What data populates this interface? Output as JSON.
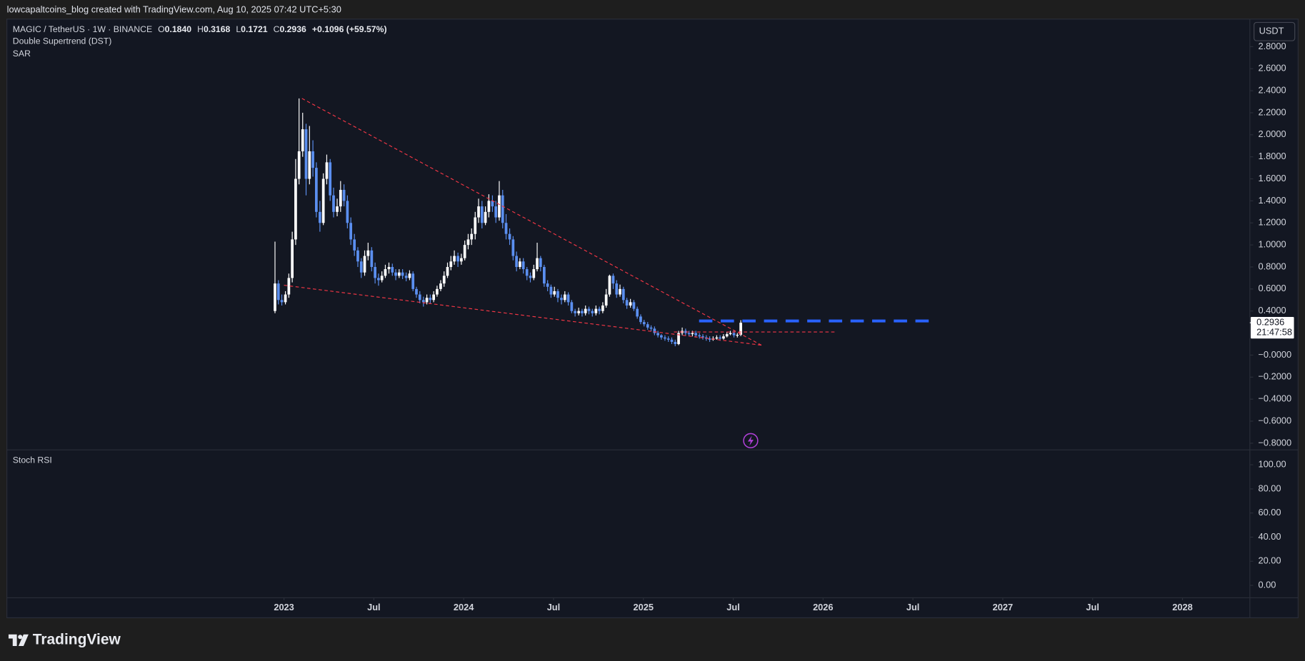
{
  "header": {
    "text": "lowcapaltcoins_blog created with TradingView.com, Aug 10, 2025 07:42 UTC+5:30"
  },
  "footer": {
    "logo": "TradingView"
  },
  "chart_data": [
    {
      "type": "candlestick",
      "title": "MAGIC / TetherUS · 1W · BINANCE",
      "legend": [
        {
          "label": "O",
          "value": "0.1840"
        },
        {
          "label": "H",
          "value": "0.3168"
        },
        {
          "label": "L",
          "value": "0.1721"
        },
        {
          "label": "C",
          "value": "0.2936"
        }
      ],
      "change": "+0.1096 (+59.57%)",
      "indicators": [
        "Double Supertrend (DST)",
        "SAR"
      ],
      "currency": "USDT",
      "last_price": "0.2936",
      "countdown": "21:47:58",
      "up_color": "#ffffff",
      "down_color": "#5b8ff0",
      "xlim": [
        2021.458,
        2028.375
      ],
      "xticks": [
        {
          "value": 2023,
          "label": "2023"
        },
        {
          "value": 2023.5,
          "label": "Jul"
        },
        {
          "value": 2024,
          "label": "2024"
        },
        {
          "value": 2024.5,
          "label": "Jul"
        },
        {
          "value": 2025,
          "label": "2025"
        },
        {
          "value": 2025.5,
          "label": "Jul"
        },
        {
          "value": 2026,
          "label": "2026"
        },
        {
          "value": 2026.5,
          "label": "Jul"
        },
        {
          "value": 2027,
          "label": "2027"
        },
        {
          "value": 2027.5,
          "label": "Jul"
        },
        {
          "value": 2028,
          "label": "2028"
        }
      ],
      "ylim": [
        -0.86,
        3.05
      ],
      "yticks": [
        {
          "value": 2.8,
          "label": "2.8000"
        },
        {
          "value": 2.6,
          "label": "2.6000"
        },
        {
          "value": 2.4,
          "label": "2.4000"
        },
        {
          "value": 2.2,
          "label": "2.2000"
        },
        {
          "value": 2.0,
          "label": "2.0000"
        },
        {
          "value": 1.8,
          "label": "1.8000"
        },
        {
          "value": 1.6,
          "label": "1.6000"
        },
        {
          "value": 1.4,
          "label": "1.4000"
        },
        {
          "value": 1.2,
          "label": "1.2000"
        },
        {
          "value": 1.0,
          "label": "1.0000"
        },
        {
          "value": 0.8,
          "label": "0.8000"
        },
        {
          "value": 0.6,
          "label": "0.6000"
        },
        {
          "value": 0.4,
          "label": "0.4000"
        },
        {
          "value": 0,
          "label": "−0.0000"
        },
        {
          "value": -0.2,
          "label": "−0.2000"
        },
        {
          "value": -0.4,
          "label": "−0.4000"
        },
        {
          "value": -0.6,
          "label": "−0.6000"
        },
        {
          "value": -0.8,
          "label": "−0.8000"
        }
      ],
      "x": [
        2022.95,
        2022.969,
        2022.988,
        2023.008,
        2023.027,
        2023.046,
        2023.065,
        2023.084,
        2023.104,
        2023.123,
        2023.142,
        2023.161,
        2023.18,
        2023.2,
        2023.219,
        2023.238,
        2023.257,
        2023.276,
        2023.296,
        2023.315,
        2023.334,
        2023.353,
        2023.372,
        2023.392,
        2023.411,
        2023.43,
        2023.449,
        2023.468,
        2023.488,
        2023.507,
        2023.526,
        2023.545,
        2023.564,
        2023.584,
        2023.603,
        2023.622,
        2023.641,
        2023.66,
        2023.68,
        2023.699,
        2023.718,
        2023.737,
        2023.756,
        2023.776,
        2023.795,
        2023.814,
        2023.833,
        2023.852,
        2023.872,
        2023.891,
        2023.91,
        2023.929,
        2023.948,
        2023.968,
        2023.987,
        2024.006,
        2024.025,
        2024.044,
        2024.064,
        2024.083,
        2024.102,
        2024.121,
        2024.14,
        2024.16,
        2024.179,
        2024.198,
        2024.217,
        2024.236,
        2024.256,
        2024.275,
        2024.294,
        2024.313,
        2024.332,
        2024.352,
        2024.371,
        2024.39,
        2024.409,
        2024.428,
        2024.448,
        2024.467,
        2024.486,
        2024.505,
        2024.524,
        2024.544,
        2024.563,
        2024.582,
        2024.601,
        2024.62,
        2024.64,
        2024.659,
        2024.678,
        2024.697,
        2024.716,
        2024.736,
        2024.755,
        2024.774,
        2024.793,
        2024.812,
        2024.832,
        2024.851,
        2024.87,
        2024.889,
        2024.908,
        2024.928,
        2024.947,
        2024.966,
        2024.985,
        2025.004,
        2025.024,
        2025.043,
        2025.062,
        2025.081,
        2025.1,
        2025.12,
        2025.139,
        2025.158,
        2025.177,
        2025.196,
        2025.216,
        2025.235,
        2025.254,
        2025.273,
        2025.292,
        2025.312,
        2025.331,
        2025.35,
        2025.369,
        2025.388,
        2025.408,
        2025.427,
        2025.446,
        2025.465,
        2025.484,
        2025.504,
        2025.523,
        2025.542
      ],
      "open": [
        0.4,
        0.65,
        0.5,
        0.48,
        0.55,
        0.7,
        1.05,
        1.6,
        1.85,
        2.05,
        1.6,
        1.85,
        1.7,
        1.3,
        1.2,
        1.6,
        1.75,
        1.45,
        1.3,
        1.35,
        1.5,
        1.4,
        1.2,
        1.05,
        0.95,
        0.85,
        0.75,
        0.9,
        0.95,
        0.8,
        0.7,
        0.68,
        0.72,
        0.78,
        0.8,
        0.75,
        0.72,
        0.75,
        0.72,
        0.7,
        0.74,
        0.6,
        0.55,
        0.5,
        0.48,
        0.52,
        0.5,
        0.55,
        0.6,
        0.65,
        0.72,
        0.8,
        0.85,
        0.9,
        0.85,
        0.88,
        1.0,
        1.05,
        1.1,
        1.25,
        1.35,
        1.2,
        1.3,
        1.4,
        1.35,
        1.25,
        1.45,
        1.2,
        1.1,
        1.05,
        0.9,
        0.8,
        0.85,
        0.78,
        0.72,
        0.7,
        0.78,
        0.88,
        0.8,
        0.65,
        0.62,
        0.55,
        0.58,
        0.52,
        0.5,
        0.55,
        0.48,
        0.4,
        0.38,
        0.4,
        0.38,
        0.42,
        0.4,
        0.38,
        0.42,
        0.4,
        0.45,
        0.55,
        0.72,
        0.65,
        0.55,
        0.6,
        0.5,
        0.45,
        0.48,
        0.42,
        0.35,
        0.3,
        0.28,
        0.25,
        0.24,
        0.2,
        0.18,
        0.16,
        0.15,
        0.14,
        0.12,
        0.1,
        0.2,
        0.22,
        0.2,
        0.19,
        0.2,
        0.18,
        0.17,
        0.16,
        0.15,
        0.14,
        0.15,
        0.16,
        0.15,
        0.17,
        0.19,
        0.2,
        0.18,
        0.184
      ],
      "high": [
        1.03,
        0.68,
        0.55,
        0.58,
        0.74,
        1.12,
        1.78,
        2.33,
        2.2,
        2.1,
        2.08,
        1.95,
        1.75,
        1.4,
        1.65,
        1.82,
        1.78,
        1.52,
        1.42,
        1.58,
        1.55,
        1.45,
        1.25,
        1.1,
        0.98,
        0.88,
        0.95,
        1.02,
        0.98,
        0.84,
        0.74,
        0.76,
        0.82,
        0.84,
        0.83,
        0.78,
        0.78,
        0.78,
        0.75,
        0.77,
        0.76,
        0.62,
        0.58,
        0.53,
        0.55,
        0.55,
        0.58,
        0.63,
        0.68,
        0.76,
        0.84,
        0.9,
        0.95,
        0.93,
        0.92,
        1.04,
        1.1,
        1.15,
        1.3,
        1.42,
        1.4,
        1.35,
        1.46,
        1.45,
        1.4,
        1.58,
        1.5,
        1.28,
        1.15,
        1.08,
        0.94,
        0.88,
        0.88,
        0.8,
        0.75,
        0.82,
        1.02,
        0.9,
        0.82,
        0.68,
        0.64,
        0.62,
        0.6,
        0.55,
        0.58,
        0.57,
        0.5,
        0.42,
        0.43,
        0.42,
        0.45,
        0.44,
        0.42,
        0.45,
        0.44,
        0.48,
        0.6,
        0.73,
        0.74,
        0.68,
        0.64,
        0.62,
        0.52,
        0.51,
        0.5,
        0.44,
        0.37,
        0.32,
        0.3,
        0.27,
        0.26,
        0.22,
        0.19,
        0.18,
        0.17,
        0.16,
        0.14,
        0.22,
        0.25,
        0.24,
        0.22,
        0.22,
        0.22,
        0.2,
        0.19,
        0.18,
        0.17,
        0.17,
        0.18,
        0.18,
        0.19,
        0.21,
        0.22,
        0.22,
        0.2,
        0.3168
      ],
      "low": [
        0.38,
        0.46,
        0.45,
        0.46,
        0.52,
        0.66,
        1.0,
        1.55,
        1.8,
        1.45,
        1.55,
        1.62,
        1.25,
        1.12,
        1.18,
        1.55,
        1.4,
        1.25,
        1.26,
        1.3,
        1.35,
        1.15,
        1.0,
        0.9,
        0.8,
        0.7,
        0.72,
        0.86,
        0.76,
        0.65,
        0.63,
        0.66,
        0.7,
        0.74,
        0.72,
        0.68,
        0.7,
        0.69,
        0.67,
        0.68,
        0.58,
        0.52,
        0.47,
        0.44,
        0.46,
        0.47,
        0.48,
        0.53,
        0.58,
        0.62,
        0.7,
        0.77,
        0.82,
        0.8,
        0.82,
        0.86,
        0.96,
        1.0,
        1.05,
        1.2,
        1.15,
        1.18,
        1.25,
        1.3,
        1.2,
        1.22,
        1.15,
        1.05,
        1.0,
        0.86,
        0.76,
        0.78,
        0.74,
        0.68,
        0.66,
        0.68,
        0.76,
        0.76,
        0.62,
        0.58,
        0.52,
        0.53,
        0.48,
        0.46,
        0.48,
        0.45,
        0.38,
        0.35,
        0.36,
        0.35,
        0.36,
        0.37,
        0.35,
        0.36,
        0.37,
        0.38,
        0.43,
        0.53,
        0.6,
        0.52,
        0.53,
        0.47,
        0.42,
        0.43,
        0.4,
        0.33,
        0.28,
        0.26,
        0.23,
        0.22,
        0.18,
        0.16,
        0.14,
        0.13,
        0.12,
        0.1,
        0.08,
        0.09,
        0.18,
        0.18,
        0.17,
        0.17,
        0.16,
        0.15,
        0.14,
        0.13,
        0.12,
        0.13,
        0.14,
        0.13,
        0.14,
        0.16,
        0.18,
        0.16,
        0.16,
        0.1721
      ],
      "close": [
        0.65,
        0.5,
        0.48,
        0.55,
        0.7,
        1.05,
        1.6,
        1.85,
        2.05,
        1.6,
        1.85,
        1.7,
        1.3,
        1.2,
        1.6,
        1.75,
        1.45,
        1.3,
        1.35,
        1.5,
        1.4,
        1.2,
        1.05,
        0.95,
        0.85,
        0.75,
        0.9,
        0.95,
        0.8,
        0.7,
        0.68,
        0.72,
        0.78,
        0.8,
        0.75,
        0.72,
        0.75,
        0.72,
        0.7,
        0.74,
        0.6,
        0.55,
        0.5,
        0.48,
        0.52,
        0.5,
        0.55,
        0.6,
        0.65,
        0.72,
        0.8,
        0.85,
        0.9,
        0.85,
        0.88,
        1.0,
        1.05,
        1.1,
        1.25,
        1.35,
        1.2,
        1.3,
        1.4,
        1.35,
        1.25,
        1.45,
        1.2,
        1.1,
        1.05,
        0.9,
        0.8,
        0.85,
        0.78,
        0.72,
        0.7,
        0.78,
        0.88,
        0.8,
        0.65,
        0.62,
        0.55,
        0.58,
        0.52,
        0.5,
        0.55,
        0.48,
        0.4,
        0.38,
        0.4,
        0.38,
        0.42,
        0.4,
        0.38,
        0.42,
        0.4,
        0.45,
        0.55,
        0.72,
        0.65,
        0.55,
        0.6,
        0.5,
        0.45,
        0.48,
        0.42,
        0.35,
        0.3,
        0.28,
        0.25,
        0.24,
        0.2,
        0.18,
        0.16,
        0.15,
        0.14,
        0.12,
        0.1,
        0.2,
        0.22,
        0.2,
        0.19,
        0.2,
        0.18,
        0.17,
        0.16,
        0.15,
        0.14,
        0.15,
        0.16,
        0.15,
        0.17,
        0.19,
        0.2,
        0.18,
        0.184,
        0.2936
      ],
      "drawings": [
        {
          "x": [
            2023.1,
            2025.657
          ],
          "y": [
            2.33,
            0.09
          ],
          "color": "#f23645",
          "dash": "short"
        },
        {
          "x": [
            2023.0,
            2025.657
          ],
          "y": [
            0.634,
            0.09
          ],
          "color": "#f23645",
          "dash": "short"
        },
        {
          "x": [
            2025.17,
            2026.07
          ],
          "y": [
            0.21,
            0.21
          ],
          "color": "#f23645",
          "dash": "short"
        },
        {
          "x": [
            2025.31,
            2026.59
          ],
          "y": [
            0.31,
            0.31
          ],
          "color": "#2962ff",
          "dash": "long"
        }
      ]
    },
    {
      "type": "line",
      "title": "Stoch RSI",
      "ylim": [
        -10.3,
        112.4
      ],
      "yticks": [
        {
          "value": 100,
          "label": "100.00"
        },
        {
          "value": 80,
          "label": "80.00"
        },
        {
          "value": 60,
          "label": "60.00"
        },
        {
          "value": 40,
          "label": "40.00"
        },
        {
          "value": 20,
          "label": "20.00"
        },
        {
          "value": 0,
          "label": "0.00"
        }
      ]
    }
  ]
}
